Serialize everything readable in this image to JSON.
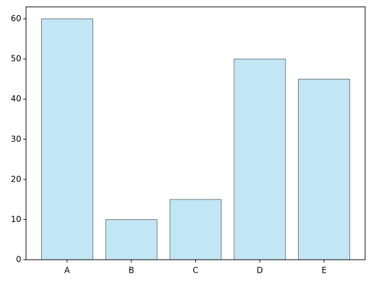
{
  "chart_data": {
    "type": "bar",
    "categories": [
      "A",
      "B",
      "C",
      "D",
      "E"
    ],
    "values": [
      60,
      10,
      15,
      50,
      45
    ],
    "color": "#c3e6f5",
    "edgecolor": "#6e7b80",
    "ylim": [
      0,
      63
    ],
    "yticks": [
      0,
      10,
      20,
      30,
      40,
      50,
      60
    ],
    "grid": false
  }
}
